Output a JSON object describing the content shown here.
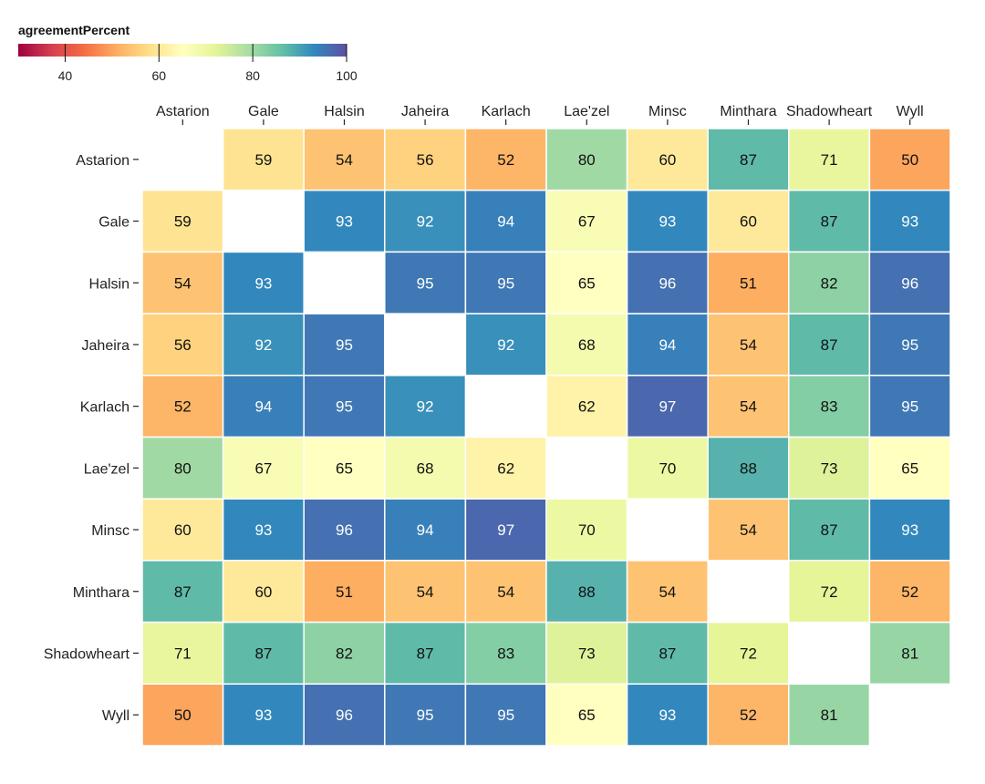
{
  "chart_data": {
    "type": "heatmap",
    "legend": {
      "title": "agreementPercent",
      "ticks": [
        40,
        60,
        80,
        100
      ],
      "domain": [
        30,
        100
      ],
      "scheme": "spectral",
      "placement": "top-left"
    },
    "x_categories": [
      "Astarion",
      "Gale",
      "Halsin",
      "Jaheira",
      "Karlach",
      "Lae'zel",
      "Minsc",
      "Minthara",
      "Shadowheart",
      "Wyll"
    ],
    "y_categories": [
      "Astarion",
      "Gale",
      "Halsin",
      "Jaheira",
      "Karlach",
      "Lae'zel",
      "Minsc",
      "Minthara",
      "Shadowheart",
      "Wyll"
    ],
    "values": [
      [
        null,
        59,
        54,
        56,
        52,
        80,
        60,
        87,
        71,
        50
      ],
      [
        59,
        null,
        93,
        92,
        94,
        67,
        93,
        60,
        87,
        93
      ],
      [
        54,
        93,
        null,
        95,
        95,
        65,
        96,
        51,
        82,
        96
      ],
      [
        56,
        92,
        95,
        null,
        92,
        68,
        94,
        54,
        87,
        95
      ],
      [
        52,
        94,
        95,
        92,
        null,
        62,
        97,
        54,
        83,
        95
      ],
      [
        80,
        67,
        65,
        68,
        62,
        null,
        70,
        88,
        73,
        65
      ],
      [
        60,
        93,
        96,
        94,
        97,
        70,
        null,
        54,
        87,
        93
      ],
      [
        87,
        60,
        51,
        54,
        54,
        88,
        54,
        null,
        72,
        52
      ],
      [
        71,
        87,
        82,
        87,
        83,
        73,
        87,
        72,
        null,
        81
      ],
      [
        50,
        93,
        96,
        95,
        95,
        65,
        93,
        52,
        81,
        null
      ]
    ]
  }
}
